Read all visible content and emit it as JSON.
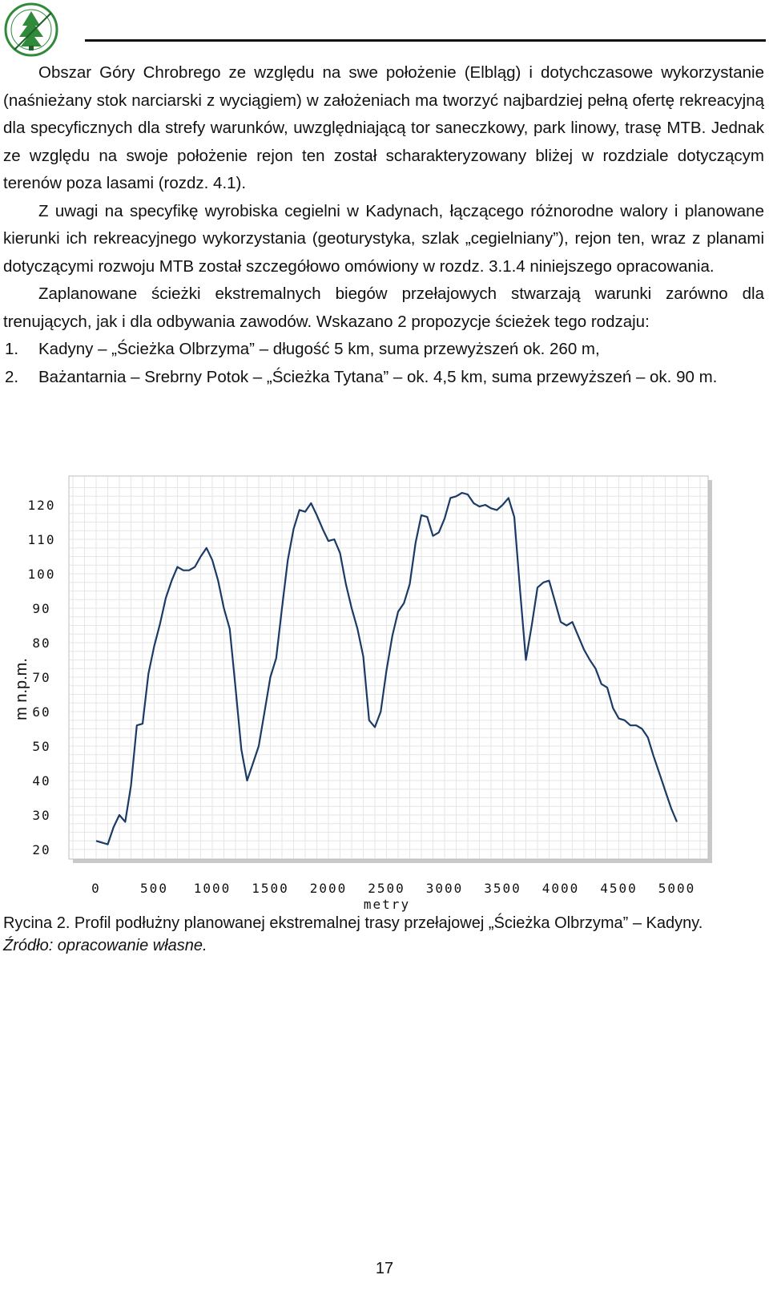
{
  "logo": {
    "icon": "forest-tree-seal-logo",
    "colors": {
      "green": "#2f8a3a",
      "dark": "#1f5f2a"
    }
  },
  "text": {
    "p1": "Obszar Góry Chrobrego ze względu na swe położenie (Elbląg) i dotychczasowe wykorzystanie (naśnieżany stok narciarski z wyciągiem) w założeniach ma tworzyć najbardziej pełną ofertę rekreacyjną dla specyficznych dla strefy warunków, uwzględniającą tor saneczkowy, park linowy, trasę MTB. Jednak ze względu na swoje położenie rejon ten został scharakteryzowany bliżej w rozdziale dotyczącym terenów poza lasami (rozdz. 4.1).",
    "p2": "Z uwagi na specyfikę wyrobiska cegielni w Kadynach, łączącego różnorodne walory i planowane kierunki ich rekreacyjnego wykorzystania (geoturystyka, szlak „cegielniany”), rejon ten, wraz z planami dotyczącymi rozwoju MTB został szczegółowo omówiony w rozdz. 3.1.4 niniejszego opracowania.",
    "p3": "Zaplanowane ścieżki ekstremalnych biegów przełajowych stwarzają warunki zarówno dla trenujących, jak i dla odbywania zawodów. Wskazano 2 propozycje ścieżek tego rodzaju:",
    "list": [
      {
        "num": "1.",
        "text": "Kadyny – „Ścieżka Olbrzyma” – długość 5 km, suma przewyższeń ok. 260 m,"
      },
      {
        "num": "2.",
        "text": "Bażantarnia – Srebrny Potok – „Ścieżka Tytana” – ok. 4,5 km, suma przewyższeń – ok. 90 m."
      }
    ]
  },
  "chart_data": {
    "type": "line",
    "title": "",
    "xlabel": "metry",
    "ylabel": "m n.p.m.",
    "xlim": [
      0,
      5000
    ],
    "ylim": [
      20,
      120
    ],
    "x_ticks": [
      "0",
      "500",
      "1000",
      "1500",
      "2000",
      "2500",
      "3000",
      "3500",
      "4000",
      "4500",
      "5000"
    ],
    "y_ticks": [
      "20",
      "30",
      "40",
      "50",
      "60",
      "70",
      "80",
      "90",
      "100",
      "110",
      "120"
    ],
    "grid": true,
    "legend": "none",
    "line_color": "#1b3b66",
    "x": [
      0,
      100,
      150,
      200,
      250,
      300,
      350,
      400,
      450,
      500,
      550,
      600,
      650,
      700,
      750,
      800,
      850,
      900,
      950,
      1000,
      1050,
      1100,
      1150,
      1200,
      1250,
      1300,
      1350,
      1400,
      1450,
      1500,
      1550,
      1600,
      1650,
      1700,
      1750,
      1800,
      1850,
      1900,
      1950,
      2000,
      2050,
      2100,
      2150,
      2200,
      2250,
      2300,
      2350,
      2400,
      2450,
      2500,
      2550,
      2600,
      2650,
      2700,
      2750,
      2800,
      2850,
      2900,
      2950,
      3000,
      3050,
      3100,
      3150,
      3200,
      3250,
      3300,
      3350,
      3400,
      3450,
      3500,
      3550,
      3600,
      3650,
      3700,
      3750,
      3800,
      3850,
      3900,
      3950,
      4000,
      4050,
      4100,
      4150,
      4200,
      4250,
      4300,
      4350,
      4400,
      4450,
      4500,
      4550,
      4600,
      4650,
      4700,
      4750,
      4800,
      4850,
      4900,
      4950,
      5000
    ],
    "series": [
      {
        "values": [
          22.5,
          21.5,
          26.5,
          30,
          28,
          38.5,
          56,
          56.5,
          71,
          79,
          85.5,
          93,
          98,
          102,
          101,
          101,
          102,
          105,
          107.5,
          104,
          98,
          90,
          84,
          67,
          49,
          40,
          45,
          50,
          60,
          70,
          75.5,
          90,
          104,
          113,
          118.5,
          118,
          120.5,
          117,
          113,
          109.5,
          110,
          106,
          97,
          90,
          84,
          76,
          57.5,
          55.5,
          60,
          72,
          82,
          89,
          91.5,
          97,
          109,
          117,
          116.5,
          111,
          112,
          116,
          122,
          122.5,
          123.5,
          123,
          120.5,
          119.5,
          120,
          119,
          118.5,
          120,
          122,
          116.5,
          95,
          75,
          85,
          96,
          97.5,
          98,
          92,
          86,
          85,
          86,
          82,
          78,
          75,
          72.5,
          68,
          67,
          61,
          58,
          57.5,
          56,
          56,
          55,
          52.5,
          47,
          42,
          37,
          32,
          28
        ]
      }
    ]
  },
  "caption": {
    "figure": "Rycina 2. Profil podłużny planowanej ekstremalnej trasy przełajowej „Ścieżka Olbrzyma” – Kadyny.",
    "source": "Źródło: opracowanie własne."
  },
  "page_number": "17"
}
